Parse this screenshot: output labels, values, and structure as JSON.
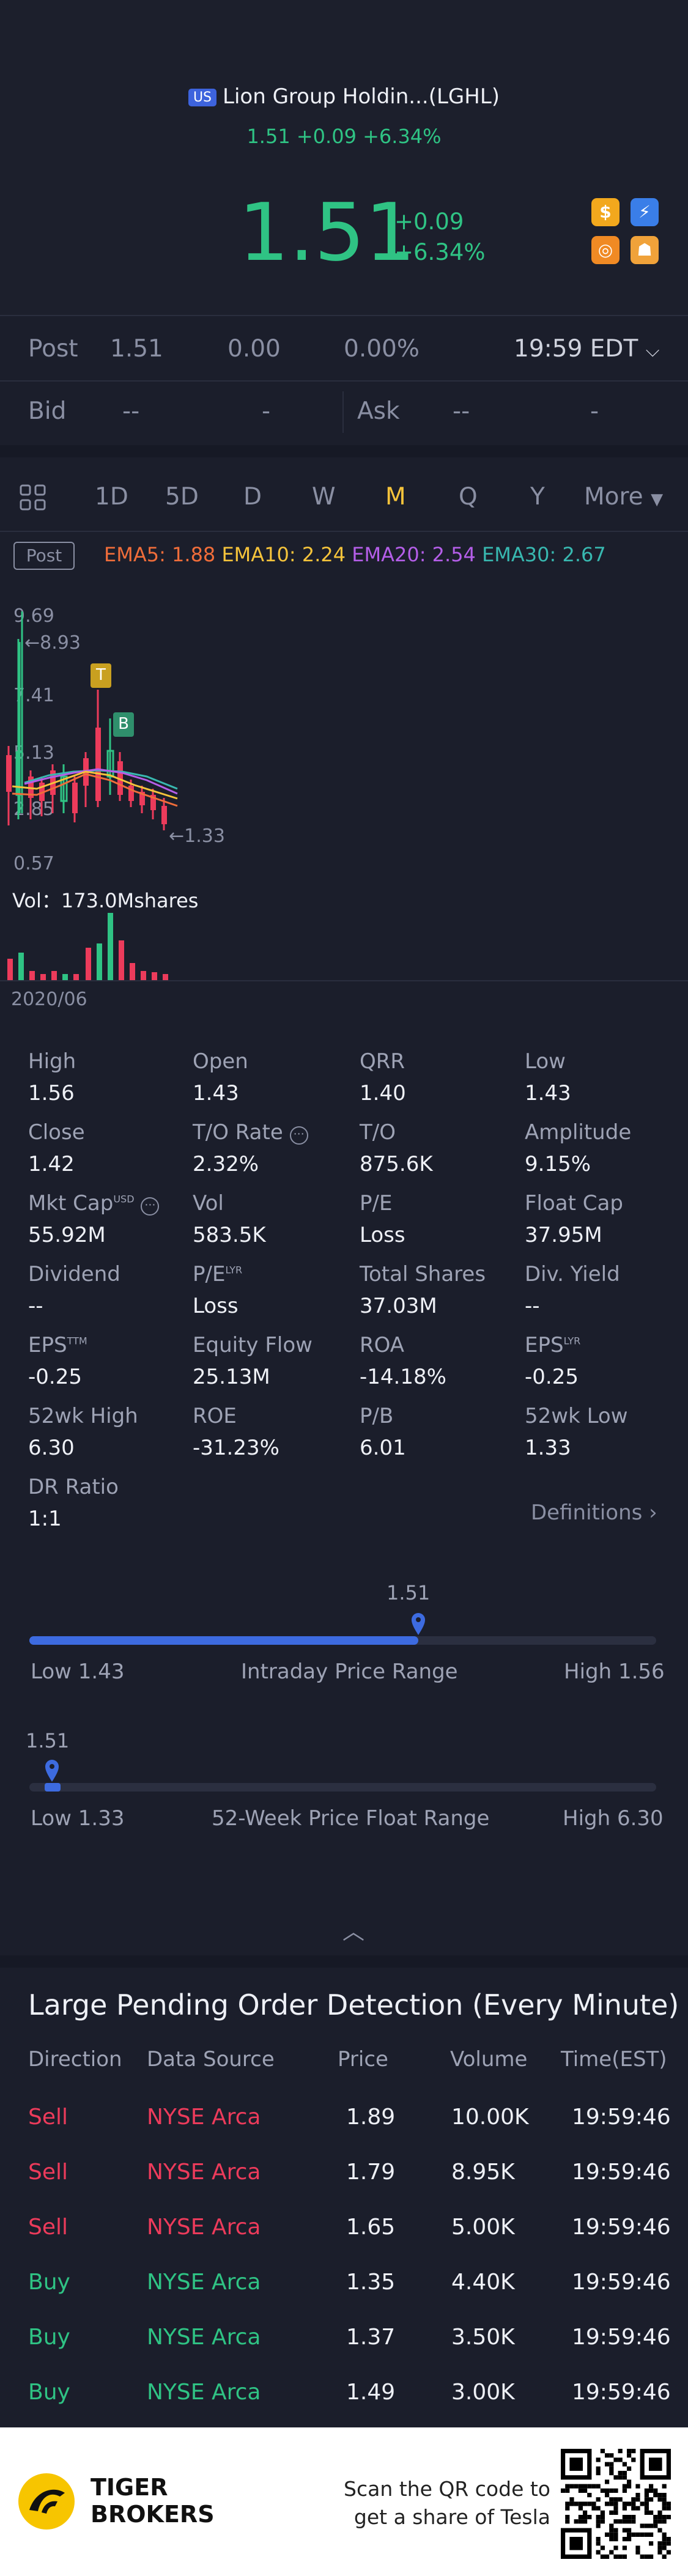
{
  "header": {
    "market_badge": "US",
    "title": "Lion Group Holdin...(LGHL)",
    "sub_quote": "1.51 +0.09 +6.34%",
    "price": "1.51",
    "change": "+0.09",
    "change_pct": "+6.34%",
    "icons": [
      "dollar-icon",
      "flash-icon",
      "basketball-icon",
      "education-icon"
    ]
  },
  "post_row": {
    "label": "Post",
    "price": "1.51",
    "change": "0.00",
    "change_pct": "0.00%",
    "time": "19:59 EDT"
  },
  "bid_row": {
    "bid_label": "Bid",
    "bid_price": "--",
    "bid_size": "-",
    "ask_label": "Ask",
    "ask_price": "--",
    "ask_size": "-"
  },
  "tabs": {
    "items": [
      "1D",
      "5D",
      "D",
      "W",
      "M",
      "Q",
      "Y"
    ],
    "active": "M",
    "more": "More"
  },
  "chart_header": {
    "badge": "Post",
    "ema5": "EMA5: 1.88",
    "ema10": "EMA10: 2.24",
    "ema20": "EMA20: 2.54",
    "ema30": "EMA30: 2.67"
  },
  "chart_labels": {
    "y_top": "9.69",
    "y_high_marker": "8.93",
    "y_2": "7.41",
    "y_3": "5.13",
    "y_4": "2.85",
    "y_low_marker": "1.33",
    "y_bottom": "0.57",
    "marker_t": "T",
    "marker_b": "B",
    "vol_label": "Vol：173.0Mshares",
    "date": "2020/06"
  },
  "chart_data": {
    "type": "candlestick",
    "x_label": "2020/06",
    "ylim": [
      0.57,
      9.69
    ],
    "high": 8.93,
    "low": 1.33,
    "ema": {
      "EMA5": 1.88,
      "EMA10": 2.24,
      "EMA20": 2.54,
      "EMA30": 2.67
    },
    "volume_total": "173.0Mshares"
  },
  "stats": {
    "rows": [
      [
        {
          "label": "High",
          "value": "1.56"
        },
        {
          "label": "Open",
          "value": "1.43"
        },
        {
          "label": "QRR",
          "value": "1.40"
        },
        {
          "label": "Low",
          "value": "1.43"
        }
      ],
      [
        {
          "label": "Close",
          "value": "1.42"
        },
        {
          "label": "T/O Rate",
          "value": "2.32%"
        },
        {
          "label": "T/O",
          "value": "875.6K"
        },
        {
          "label": "Amplitude",
          "value": "9.15%"
        }
      ],
      [
        {
          "label": "Mkt Cap",
          "value": "55.92M"
        },
        {
          "label": "Vol",
          "value": "583.5K"
        },
        {
          "label": "P/E",
          "value": "Loss"
        },
        {
          "label": "Float Cap",
          "value": "37.95M"
        }
      ],
      [
        {
          "label": "Dividend",
          "value": "--"
        },
        {
          "label": "P/E",
          "value": "Loss"
        },
        {
          "label": "Total Shares",
          "value": "37.03M"
        },
        {
          "label": "Div. Yield",
          "value": "--"
        }
      ],
      [
        {
          "label": "EPS",
          "value": "-0.25"
        },
        {
          "label": "Equity Flow",
          "value": "25.13M"
        },
        {
          "label": "ROA",
          "value": "-14.18%"
        },
        {
          "label": "EPS",
          "value": "-0.25"
        }
      ],
      [
        {
          "label": "52wk High",
          "value": "6.30"
        },
        {
          "label": "ROE",
          "value": "-31.23%"
        },
        {
          "label": "P/B",
          "value": "6.01"
        },
        {
          "label": "52wk Low",
          "value": "1.33"
        }
      ],
      [
        {
          "label": "DR Ratio",
          "value": "1:1"
        }
      ]
    ],
    "superscripts": {
      "usd": "USD",
      "lyr": "LYR",
      "ttm": "TTM",
      "lyr2": "LYR"
    },
    "definitions": "Definitions"
  },
  "intraday": {
    "current": "1.51",
    "low": "Low 1.43",
    "label": "Intraday Price Range",
    "high": "High 1.56",
    "fraction": 0.62
  },
  "week52": {
    "current": "1.51",
    "low": "Low 1.33",
    "label": "52-Week Price Float Range",
    "high": "High 6.30",
    "fraction": 0.036
  },
  "orders": {
    "title": "Large Pending Order Detection (Every Minute)",
    "headers": [
      "Direction",
      "Data Source",
      "Price",
      "Volume",
      "Time(EST)"
    ],
    "rows": [
      {
        "direction": "Sell",
        "source": "NYSE Arca",
        "price": "1.89",
        "volume": "10.00K",
        "time": "19:59:46"
      },
      {
        "direction": "Sell",
        "source": "NYSE Arca",
        "price": "1.79",
        "volume": "8.95K",
        "time": "19:59:46"
      },
      {
        "direction": "Sell",
        "source": "NYSE Arca",
        "price": "1.65",
        "volume": "5.00K",
        "time": "19:59:46"
      },
      {
        "direction": "Buy",
        "source": "NYSE Arca",
        "price": "1.35",
        "volume": "4.40K",
        "time": "19:59:46"
      },
      {
        "direction": "Buy",
        "source": "NYSE Arca",
        "price": "1.37",
        "volume": "3.50K",
        "time": "19:59:46"
      },
      {
        "direction": "Buy",
        "source": "NYSE Arca",
        "price": "1.49",
        "volume": "3.00K",
        "time": "19:59:46"
      }
    ]
  },
  "footer": {
    "brand_line1": "TIGER",
    "brand_line2": "BROKERS",
    "scan_line1": "Scan the QR code to",
    "scan_line2": "get a share of Tesla"
  },
  "colors": {
    "background": "#1b1e2b",
    "green": "#2fc384",
    "red": "#ec3b5b",
    "accent_blue": "#3d6be0",
    "active_tab": "#f5c33b"
  }
}
